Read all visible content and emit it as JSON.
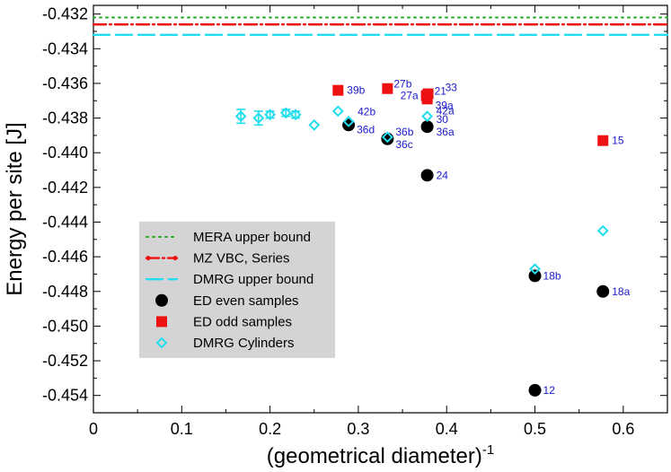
{
  "chart_data": {
    "type": "scatter",
    "xlabel": "(geometrical diameter)",
    "xlabel_sup": "-1",
    "ylabel": "Energy per site [J]",
    "xlim": [
      0,
      0.65
    ],
    "ylim": [
      -0.455,
      -0.4315
    ],
    "x_ticks": [
      "0",
      "0.1",
      "0.2",
      "0.3",
      "0.4",
      "0.5",
      "0.6"
    ],
    "x_tick_values": [
      0,
      0.1,
      0.2,
      0.3,
      0.4,
      0.5,
      0.6
    ],
    "y_ticks": [
      "-0.432",
      "-0.434",
      "-0.436",
      "-0.438",
      "-0.440",
      "-0.442",
      "-0.444",
      "-0.446",
      "-0.448",
      "-0.450",
      "-0.452",
      "-0.454"
    ],
    "y_tick_values": [
      -0.432,
      -0.434,
      -0.436,
      -0.438,
      -0.44,
      -0.442,
      -0.444,
      -0.446,
      -0.448,
      -0.45,
      -0.452,
      -0.454
    ],
    "hlines": [
      {
        "name": "MERA upper bound",
        "y": -0.4322,
        "color": "#22aa22",
        "style": "dotted"
      },
      {
        "name": "MZ VBC, Series",
        "y": -0.4326,
        "color": "#ee1111",
        "style": "dash-dot"
      },
      {
        "name": "DMRG upper bound",
        "y": -0.4332,
        "color": "#22ddee",
        "style": "dashed"
      }
    ],
    "series": [
      {
        "name": "ED even samples",
        "marker": "circle",
        "color": "#000000",
        "points": [
          {
            "x": 0.289,
            "y": -0.4384,
            "label": "36d"
          },
          {
            "x": 0.333,
            "y": -0.4392,
            "label": "36c"
          },
          {
            "x": 0.378,
            "y": -0.4385,
            "label": "36a"
          },
          {
            "x": 0.378,
            "y": -0.4413,
            "label": "24"
          },
          {
            "x": 0.5,
            "y": -0.4471,
            "label": "18b"
          },
          {
            "x": 0.577,
            "y": -0.448,
            "label": "18a"
          },
          {
            "x": 0.5,
            "y": -0.4537,
            "label": "12"
          }
        ]
      },
      {
        "name": "ED odd samples",
        "marker": "square",
        "color": "#ee1111",
        "points": [
          {
            "x": 0.277,
            "y": -0.4364,
            "label": "39b"
          },
          {
            "x": 0.333,
            "y": -0.4363,
            "label": "27b"
          },
          {
            "x": 0.377,
            "y": -0.4367,
            "label": "27a"
          },
          {
            "x": 0.379,
            "y": -0.4366,
            "label": "21"
          },
          {
            "x": 0.378,
            "y": -0.4369,
            "label": "39a"
          },
          {
            "x": 0.378,
            "y": -0.4368,
            "label": "33"
          },
          {
            "x": 0.577,
            "y": -0.4393,
            "label": "15"
          }
        ]
      },
      {
        "name": "DMRG Cylinders",
        "marker": "diamond",
        "color": "#22ddee",
        "points": [
          {
            "x": 0.167,
            "y": -0.4379,
            "err": 0.0004
          },
          {
            "x": 0.187,
            "y": -0.438,
            "err": 0.0004
          },
          {
            "x": 0.2,
            "y": -0.4378,
            "err": 0.0002
          },
          {
            "x": 0.218,
            "y": -0.4377,
            "err": 0.0002
          },
          {
            "x": 0.229,
            "y": -0.4378,
            "err": 0.0002
          },
          {
            "x": 0.25,
            "y": -0.4384,
            "err": 0
          },
          {
            "x": 0.277,
            "y": -0.4376,
            "err": 0
          },
          {
            "x": 0.289,
            "y": -0.4382,
            "err": 0,
            "label": "42b"
          },
          {
            "x": 0.333,
            "y": -0.4391,
            "err": 0,
            "label": "36b"
          },
          {
            "x": 0.378,
            "y": -0.4379,
            "err": 0,
            "label": "42a"
          },
          {
            "x": 0.5,
            "y": -0.4467,
            "err": 0
          },
          {
            "x": 0.577,
            "y": -0.4445,
            "err": 0
          }
        ]
      }
    ],
    "point_label_text": {
      "36d": "36d",
      "36c": "36c",
      "36a": "36a",
      "24": "24",
      "18b": "18b",
      "18a": "18a",
      "12": "12",
      "39b": "39b",
      "27b": "27b",
      "27a": "27a",
      "21": "21",
      "39a": "39a",
      "33": "33",
      "15": "15",
      "42b": "42b",
      "36b": "36b",
      "42a": "42a",
      "30": "30"
    },
    "legend": {
      "position": "center-left",
      "entries": [
        "MERA upper bound",
        "MZ VBC, Series",
        "DMRG upper bound",
        "ED even samples",
        "ED odd samples",
        "DMRG Cylinders"
      ]
    },
    "colors": {
      "legend_bg": "#d4d4d4",
      "label": "#1a1acc"
    }
  }
}
